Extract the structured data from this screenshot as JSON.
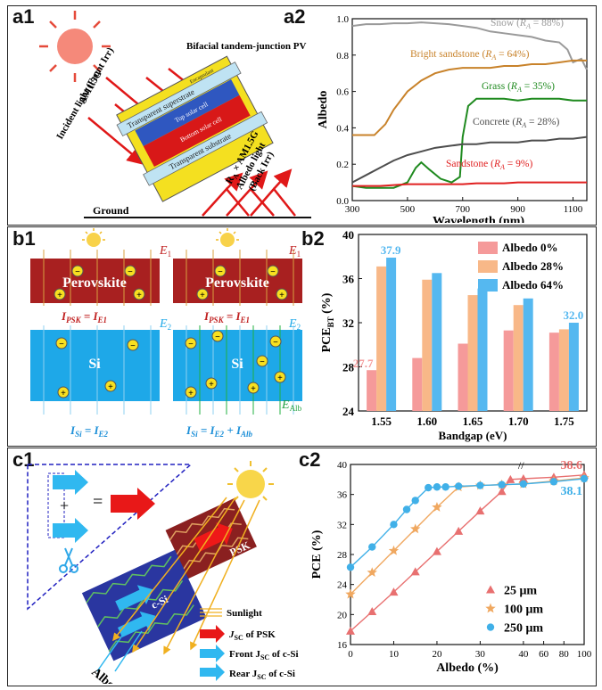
{
  "panel_labels": {
    "a1": "a1",
    "a2": "a2",
    "b1": "b1",
    "b2": "b2",
    "c1": "c1",
    "c2": "c2"
  },
  "a1": {
    "incident": "Incident light (Front Irr)",
    "am15g": "AM1.5G",
    "bifacial": "Bifacial tandem-junction PV",
    "superstrate": "Transparent superstrate",
    "substrate": "Transparent substrate",
    "encapsulant": "Encapsulant",
    "top_cell": "Top solar cell",
    "bottom_cell": "Bottom solar cell",
    "albedo_formula": "R",
    "albedo_formula_rest": " × AM1.5G",
    "albedo_sub": "A",
    "albedo_light": "Albedo light",
    "back_irr": "(Back Irr)",
    "ground": "Ground"
  },
  "b1": {
    "perovskite": "Perovskite",
    "si": "Si",
    "e1": "E",
    "e2": "E",
    "e_sub1": "1",
    "e_sub2": "2",
    "ealb": "E",
    "ealb_sub": "Alb",
    "ipsk_left": "I",
    "ipsk_sub": "PSK",
    "ipsk_eq": " = I",
    "ipsk_sub2": "E1",
    "isi_left": "I",
    "isi_sub": "Si",
    "isi_eq": " = I",
    "isi_sub2": "E2",
    "isi_plus": " + I",
    "isi_sub3": "Alb"
  },
  "c1": {
    "sunlight": "Sunlight",
    "jsc_psk": "J",
    "jsc_psk_sub": "SC",
    "jsc_psk_rest": " of PSK",
    "front": "Front J",
    "front_sub": "SC",
    "front_rest": " of c-Si",
    "rear": "Rear J",
    "rear_sub": "SC",
    "rear_rest": " of c-Si",
    "albedo": "Albedo",
    "psk": "PSK",
    "csi": "c-Si",
    "plus": "+",
    "equals": "="
  },
  "colors": {
    "snow": "#9a9a9a",
    "bright_sandstone": "#c8822a",
    "grass": "#1f8a1f",
    "concrete": "#4d4d4d",
    "sandstone": "#e02020",
    "albedo0": "#f59a9a",
    "albedo28": "#f8b888",
    "albedo64": "#55b8f0",
    "c25": "#e87070",
    "c100": "#f0a860",
    "c250": "#40b0e8"
  },
  "chart_data": [
    {
      "type": "line",
      "panel": "a2",
      "xlabel": "Wavelength (nm)",
      "ylabel": "Albedo",
      "xlim": [
        300,
        1150
      ],
      "ylim": [
        0,
        1.0
      ],
      "xticks": [
        300,
        500,
        700,
        900,
        1100
      ],
      "yticks": [
        0.0,
        0.2,
        0.4,
        0.6,
        0.8,
        1.0
      ],
      "series": [
        {
          "name": "Snow",
          "label_value": "88%",
          "color": "#9a9a9a",
          "x": [
            300,
            350,
            400,
            450,
            500,
            550,
            600,
            650,
            700,
            750,
            800,
            850,
            900,
            950,
            1000,
            1050,
            1080,
            1100,
            1130,
            1150
          ],
          "y": [
            0.96,
            0.97,
            0.97,
            0.975,
            0.975,
            0.98,
            0.975,
            0.97,
            0.96,
            0.95,
            0.93,
            0.92,
            0.91,
            0.9,
            0.88,
            0.87,
            0.83,
            0.76,
            0.78,
            0.72
          ]
        },
        {
          "name": "Bright sandstone",
          "label_value": "64%",
          "color": "#c8822a",
          "x": [
            300,
            350,
            380,
            420,
            450,
            500,
            550,
            600,
            650,
            700,
            750,
            800,
            850,
            900,
            950,
            1000,
            1050,
            1100,
            1150
          ],
          "y": [
            0.36,
            0.36,
            0.36,
            0.42,
            0.5,
            0.6,
            0.66,
            0.7,
            0.72,
            0.73,
            0.73,
            0.73,
            0.74,
            0.74,
            0.75,
            0.75,
            0.76,
            0.77,
            0.77
          ]
        },
        {
          "name": "Grass",
          "label_value": "35%",
          "color": "#1f8a1f",
          "x": [
            300,
            350,
            400,
            450,
            500,
            530,
            550,
            580,
            620,
            660,
            690,
            700,
            720,
            750,
            800,
            850,
            900,
            950,
            1000,
            1050,
            1100,
            1150
          ],
          "y": [
            0.08,
            0.07,
            0.07,
            0.07,
            0.1,
            0.18,
            0.21,
            0.17,
            0.12,
            0.1,
            0.13,
            0.35,
            0.52,
            0.56,
            0.56,
            0.56,
            0.55,
            0.56,
            0.56,
            0.56,
            0.55,
            0.55
          ]
        },
        {
          "name": "Concrete",
          "label_value": "28%",
          "color": "#4d4d4d",
          "x": [
            300,
            350,
            400,
            450,
            500,
            550,
            600,
            650,
            700,
            750,
            800,
            850,
            900,
            950,
            1000,
            1050,
            1100,
            1150
          ],
          "y": [
            0.1,
            0.14,
            0.18,
            0.22,
            0.25,
            0.27,
            0.29,
            0.3,
            0.31,
            0.31,
            0.32,
            0.32,
            0.32,
            0.33,
            0.33,
            0.34,
            0.34,
            0.35
          ]
        },
        {
          "name": "Sandstone",
          "label_value": "9%",
          "color": "#e02020",
          "x": [
            300,
            350,
            400,
            450,
            500,
            550,
            600,
            650,
            700,
            750,
            800,
            850,
            900,
            950,
            1000,
            1050,
            1100,
            1150
          ],
          "y": [
            0.08,
            0.08,
            0.08,
            0.085,
            0.09,
            0.09,
            0.09,
            0.09,
            0.09,
            0.095,
            0.095,
            0.095,
            0.1,
            0.1,
            0.1,
            0.1,
            0.1,
            0.1
          ]
        }
      ]
    },
    {
      "type": "bar",
      "panel": "b2",
      "xlabel": "Bandgap (eV)",
      "ylabel": "PCE",
      "ylabel_sub": "BT",
      "ylabel_unit": " (%)",
      "ylim": [
        24,
        40
      ],
      "yticks": [
        24,
        28,
        32,
        36,
        40
      ],
      "categories": [
        "1.55",
        "1.60",
        "1.65",
        "1.70",
        "1.75"
      ],
      "series": [
        {
          "name": "Albedo 0%",
          "color": "#f59a9a",
          "values": [
            27.7,
            28.8,
            30.1,
            31.3,
            31.1
          ]
        },
        {
          "name": "Albedo 28%",
          "color": "#f8b888",
          "values": [
            37.1,
            35.9,
            34.5,
            33.6,
            31.4
          ]
        },
        {
          "name": "Albedo 64%",
          "color": "#55b8f0",
          "values": [
            37.9,
            36.5,
            35.1,
            34.2,
            32.0
          ]
        }
      ],
      "annotations": [
        {
          "text": "27.7",
          "color": "#f59a9a"
        },
        {
          "text": "37.9",
          "color": "#55b8f0"
        },
        {
          "text": "32.0",
          "color": "#55b8f0"
        }
      ]
    },
    {
      "type": "scatter",
      "panel": "c2",
      "xlabel": "Albedo (%)",
      "ylabel": "PCE (%)",
      "ylim": [
        16,
        40
      ],
      "yticks": [
        16,
        20,
        24,
        28,
        32,
        36,
        40
      ],
      "xticks": [
        0,
        10,
        20,
        30,
        40,
        60,
        80,
        100
      ],
      "x_break_at": 40,
      "series": [
        {
          "name": "25   μm",
          "marker": "triangle",
          "color": "#e87070",
          "x": [
            0,
            5,
            10,
            15,
            20,
            25,
            30,
            35,
            37,
            40,
            70,
            100
          ],
          "y": [
            17.8,
            20.4,
            23.0,
            25.7,
            28.4,
            31.1,
            33.8,
            36.4,
            38.0,
            38.1,
            38.3,
            38.6
          ]
        },
        {
          "name": "100 μm",
          "marker": "star",
          "color": "#f0a860",
          "x": [
            0,
            5,
            10,
            15,
            20,
            25,
            30,
            35,
            40,
            70,
            100
          ],
          "y": [
            22.7,
            25.6,
            28.5,
            31.4,
            34.3,
            37.0,
            37.2,
            37.3,
            37.4,
            37.8,
            38.2
          ]
        },
        {
          "name": "250 μm",
          "marker": "circle",
          "color": "#40b0e8",
          "x": [
            0,
            5,
            10,
            13,
            15,
            18,
            20,
            22,
            25,
            30,
            35,
            40,
            70,
            100
          ],
          "y": [
            26.3,
            29.0,
            32.0,
            34.0,
            35.2,
            36.9,
            37.0,
            37.0,
            37.1,
            37.2,
            37.3,
            37.4,
            37.7,
            38.1
          ]
        }
      ],
      "annotations": [
        {
          "text": "38.6",
          "color": "#e87070"
        },
        {
          "text": "38.1",
          "color": "#40b0e8"
        }
      ]
    }
  ]
}
